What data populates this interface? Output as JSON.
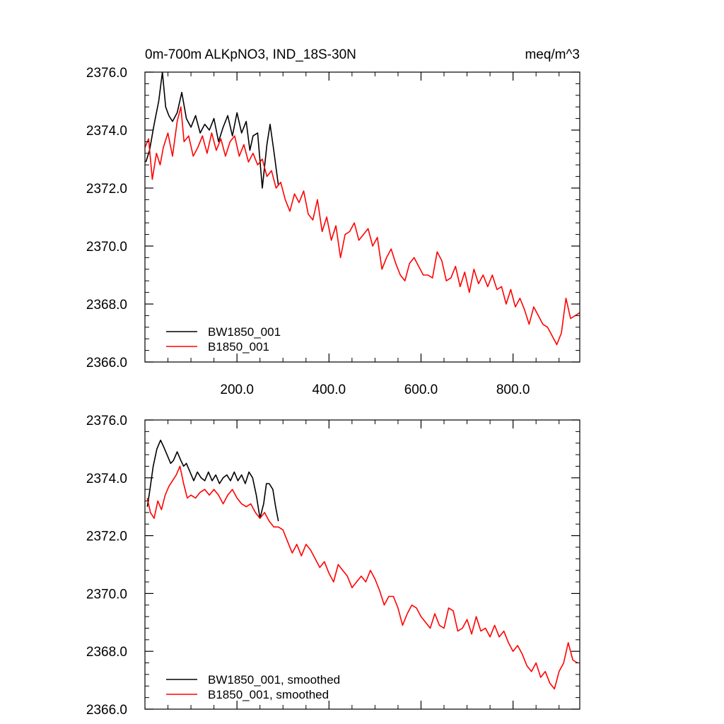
{
  "chart_data": [
    {
      "type": "line",
      "title": "0m-700m ALKpNO3, IND_18S-30N",
      "units": "meq/m^3",
      "xlim": [
        0,
        945
      ],
      "ylim": [
        2366,
        2376
      ],
      "x_ticks": [
        200,
        400,
        600,
        800
      ],
      "x_tick_labels": [
        "200.0",
        "400.0",
        "600.0",
        "800.0"
      ],
      "y_ticks": [
        2366,
        2368,
        2370,
        2372,
        2374,
        2376
      ],
      "y_tick_labels": [
        "2366.0",
        "2368.0",
        "2370.0",
        "2372.0",
        "2374.0",
        "2376.0"
      ],
      "legend_position": "bottom-left",
      "series": [
        {
          "name": "BW1850_001",
          "color": "#000000",
          "x": [
            2,
            10,
            20,
            30,
            38,
            45,
            52,
            60,
            70,
            80,
            90,
            100,
            110,
            120,
            130,
            140,
            150,
            160,
            170,
            180,
            190,
            200,
            210,
            220,
            228,
            235,
            245,
            255,
            265,
            272,
            280,
            290
          ],
          "y": [
            2372.9,
            2373.3,
            2374.2,
            2375.0,
            2376.0,
            2374.8,
            2374.5,
            2374.3,
            2374.6,
            2375.3,
            2374.4,
            2374.1,
            2374.5,
            2373.9,
            2374.2,
            2374.0,
            2374.4,
            2373.6,
            2374.1,
            2374.5,
            2373.8,
            2374.6,
            2373.9,
            2374.3,
            2373.3,
            2373.8,
            2373.9,
            2372.0,
            2373.5,
            2374.2,
            2373.3,
            2372.1
          ]
        },
        {
          "name": "B1850_001",
          "color": "#ff0000",
          "x": [
            0,
            8,
            16,
            25,
            33,
            40,
            50,
            60,
            70,
            78,
            85,
            95,
            105,
            115,
            125,
            135,
            145,
            155,
            165,
            175,
            185,
            195,
            205,
            215,
            225,
            235,
            245,
            255,
            265,
            275,
            285,
            295,
            305,
            315,
            325,
            335,
            345,
            355,
            365,
            375,
            385,
            395,
            405,
            415,
            425,
            435,
            445,
            455,
            465,
            475,
            485,
            495,
            505,
            515,
            525,
            535,
            545,
            555,
            565,
            575,
            585,
            595,
            605,
            615,
            625,
            635,
            645,
            655,
            665,
            675,
            685,
            695,
            705,
            715,
            725,
            735,
            745,
            755,
            765,
            775,
            785,
            795,
            805,
            815,
            825,
            835,
            845,
            855,
            865,
            875,
            885,
            895,
            905,
            915,
            925,
            935,
            945
          ],
          "y": [
            2373.4,
            2373.7,
            2372.3,
            2373.2,
            2372.8,
            2373.4,
            2373.9,
            2373.1,
            2374.3,
            2374.8,
            2373.6,
            2373.8,
            2373.1,
            2373.4,
            2373.8,
            2373.2,
            2373.9,
            2373.3,
            2373.7,
            2373.1,
            2373.6,
            2373.8,
            2373.1,
            2373.5,
            2372.9,
            2373.2,
            2372.8,
            2373.0,
            2372.4,
            2372.6,
            2372.0,
            2372.2,
            2371.6,
            2371.2,
            2371.8,
            2371.5,
            2371.9,
            2371.1,
            2370.9,
            2371.6,
            2370.5,
            2371.0,
            2370.2,
            2370.7,
            2369.6,
            2370.4,
            2370.5,
            2370.8,
            2370.2,
            2370.4,
            2370.6,
            2370.0,
            2370.3,
            2369.2,
            2369.6,
            2369.9,
            2369.4,
            2369.0,
            2368.8,
            2369.4,
            2369.6,
            2369.3,
            2369.0,
            2369.0,
            2368.9,
            2369.8,
            2369.5,
            2368.8,
            2368.9,
            2369.3,
            2368.6,
            2369.1,
            2368.4,
            2369.2,
            2368.7,
            2369.0,
            2368.6,
            2369.0,
            2368.5,
            2368.6,
            2368.0,
            2368.5,
            2367.9,
            2368.2,
            2367.8,
            2367.3,
            2367.9,
            2367.6,
            2367.3,
            2367.2,
            2366.9,
            2366.6,
            2367.0,
            2368.2,
            2367.5,
            2367.6,
            2367.7
          ]
        }
      ]
    },
    {
      "type": "line",
      "title": "",
      "xlim": [
        0,
        945
      ],
      "ylim": [
        2366,
        2376
      ],
      "y_ticks": [
        2366,
        2368,
        2370,
        2372,
        2374,
        2376
      ],
      "y_tick_labels": [
        "2366.0",
        "2368.0",
        "2370.0",
        "2372.0",
        "2374.0",
        "2376.0"
      ],
      "legend_position": "bottom-left",
      "series": [
        {
          "name": "BW1850_001, smoothed",
          "color": "#000000",
          "x": [
            5,
            10,
            18,
            26,
            34,
            40,
            48,
            56,
            62,
            70,
            78,
            84,
            90,
            98,
            106,
            114,
            122,
            130,
            138,
            146,
            154,
            162,
            170,
            178,
            186,
            194,
            202,
            210,
            218,
            226,
            234,
            242,
            250,
            258,
            264,
            270,
            278,
            284,
            290
          ],
          "y": [
            2373.0,
            2373.5,
            2374.4,
            2375.0,
            2375.3,
            2375.1,
            2374.8,
            2374.5,
            2374.6,
            2374.9,
            2374.6,
            2374.4,
            2374.5,
            2374.2,
            2373.9,
            2374.2,
            2374.0,
            2373.9,
            2374.2,
            2373.9,
            2374.1,
            2373.8,
            2374.0,
            2374.1,
            2373.9,
            2374.2,
            2373.9,
            2374.1,
            2373.8,
            2374.2,
            2374.0,
            2373.4,
            2372.6,
            2373.1,
            2373.8,
            2373.8,
            2373.6,
            2373.0,
            2372.5
          ]
        },
        {
          "name": "B1850_001, smoothed",
          "color": "#ff0000",
          "x": [
            5,
            12,
            20,
            28,
            36,
            44,
            52,
            60,
            68,
            76,
            84,
            92,
            100,
            110,
            120,
            130,
            140,
            150,
            160,
            170,
            180,
            190,
            200,
            210,
            220,
            230,
            240,
            250,
            260,
            270,
            280,
            290,
            300,
            310,
            320,
            330,
            340,
            350,
            360,
            370,
            380,
            390,
            400,
            410,
            420,
            430,
            440,
            450,
            460,
            470,
            480,
            490,
            500,
            510,
            520,
            530,
            540,
            550,
            560,
            570,
            580,
            590,
            600,
            610,
            620,
            630,
            640,
            650,
            660,
            670,
            680,
            690,
            700,
            710,
            720,
            730,
            740,
            750,
            760,
            770,
            780,
            790,
            800,
            810,
            820,
            830,
            840,
            850,
            860,
            870,
            880,
            890,
            900,
            910,
            920,
            930,
            940
          ],
          "y": [
            2373.3,
            2372.8,
            2372.6,
            2373.2,
            2372.9,
            2373.4,
            2373.7,
            2373.9,
            2374.1,
            2374.4,
            2373.8,
            2373.3,
            2373.4,
            2373.3,
            2373.5,
            2373.6,
            2373.4,
            2373.6,
            2373.4,
            2373.1,
            2373.4,
            2373.6,
            2373.3,
            2373.1,
            2373.0,
            2373.1,
            2372.8,
            2372.6,
            2372.8,
            2372.5,
            2372.3,
            2372.3,
            2372.2,
            2371.8,
            2371.4,
            2371.7,
            2371.3,
            2371.7,
            2371.5,
            2371.2,
            2370.9,
            2371.1,
            2370.7,
            2370.4,
            2371.0,
            2370.8,
            2370.6,
            2370.2,
            2370.4,
            2370.6,
            2370.4,
            2370.8,
            2370.5,
            2370.1,
            2369.6,
            2369.9,
            2369.9,
            2369.5,
            2368.9,
            2369.3,
            2369.6,
            2369.5,
            2369.2,
            2369.0,
            2368.8,
            2369.3,
            2368.9,
            2368.8,
            2369.5,
            2369.4,
            2368.7,
            2368.8,
            2369.1,
            2368.6,
            2369.2,
            2368.7,
            2368.8,
            2368.5,
            2368.9,
            2368.5,
            2368.7,
            2368.3,
            2368.0,
            2368.2,
            2367.9,
            2367.5,
            2367.3,
            2367.6,
            2367.1,
            2367.3,
            2366.9,
            2366.7,
            2367.3,
            2367.6,
            2368.3,
            2367.7,
            2367.6
          ]
        }
      ]
    }
  ]
}
